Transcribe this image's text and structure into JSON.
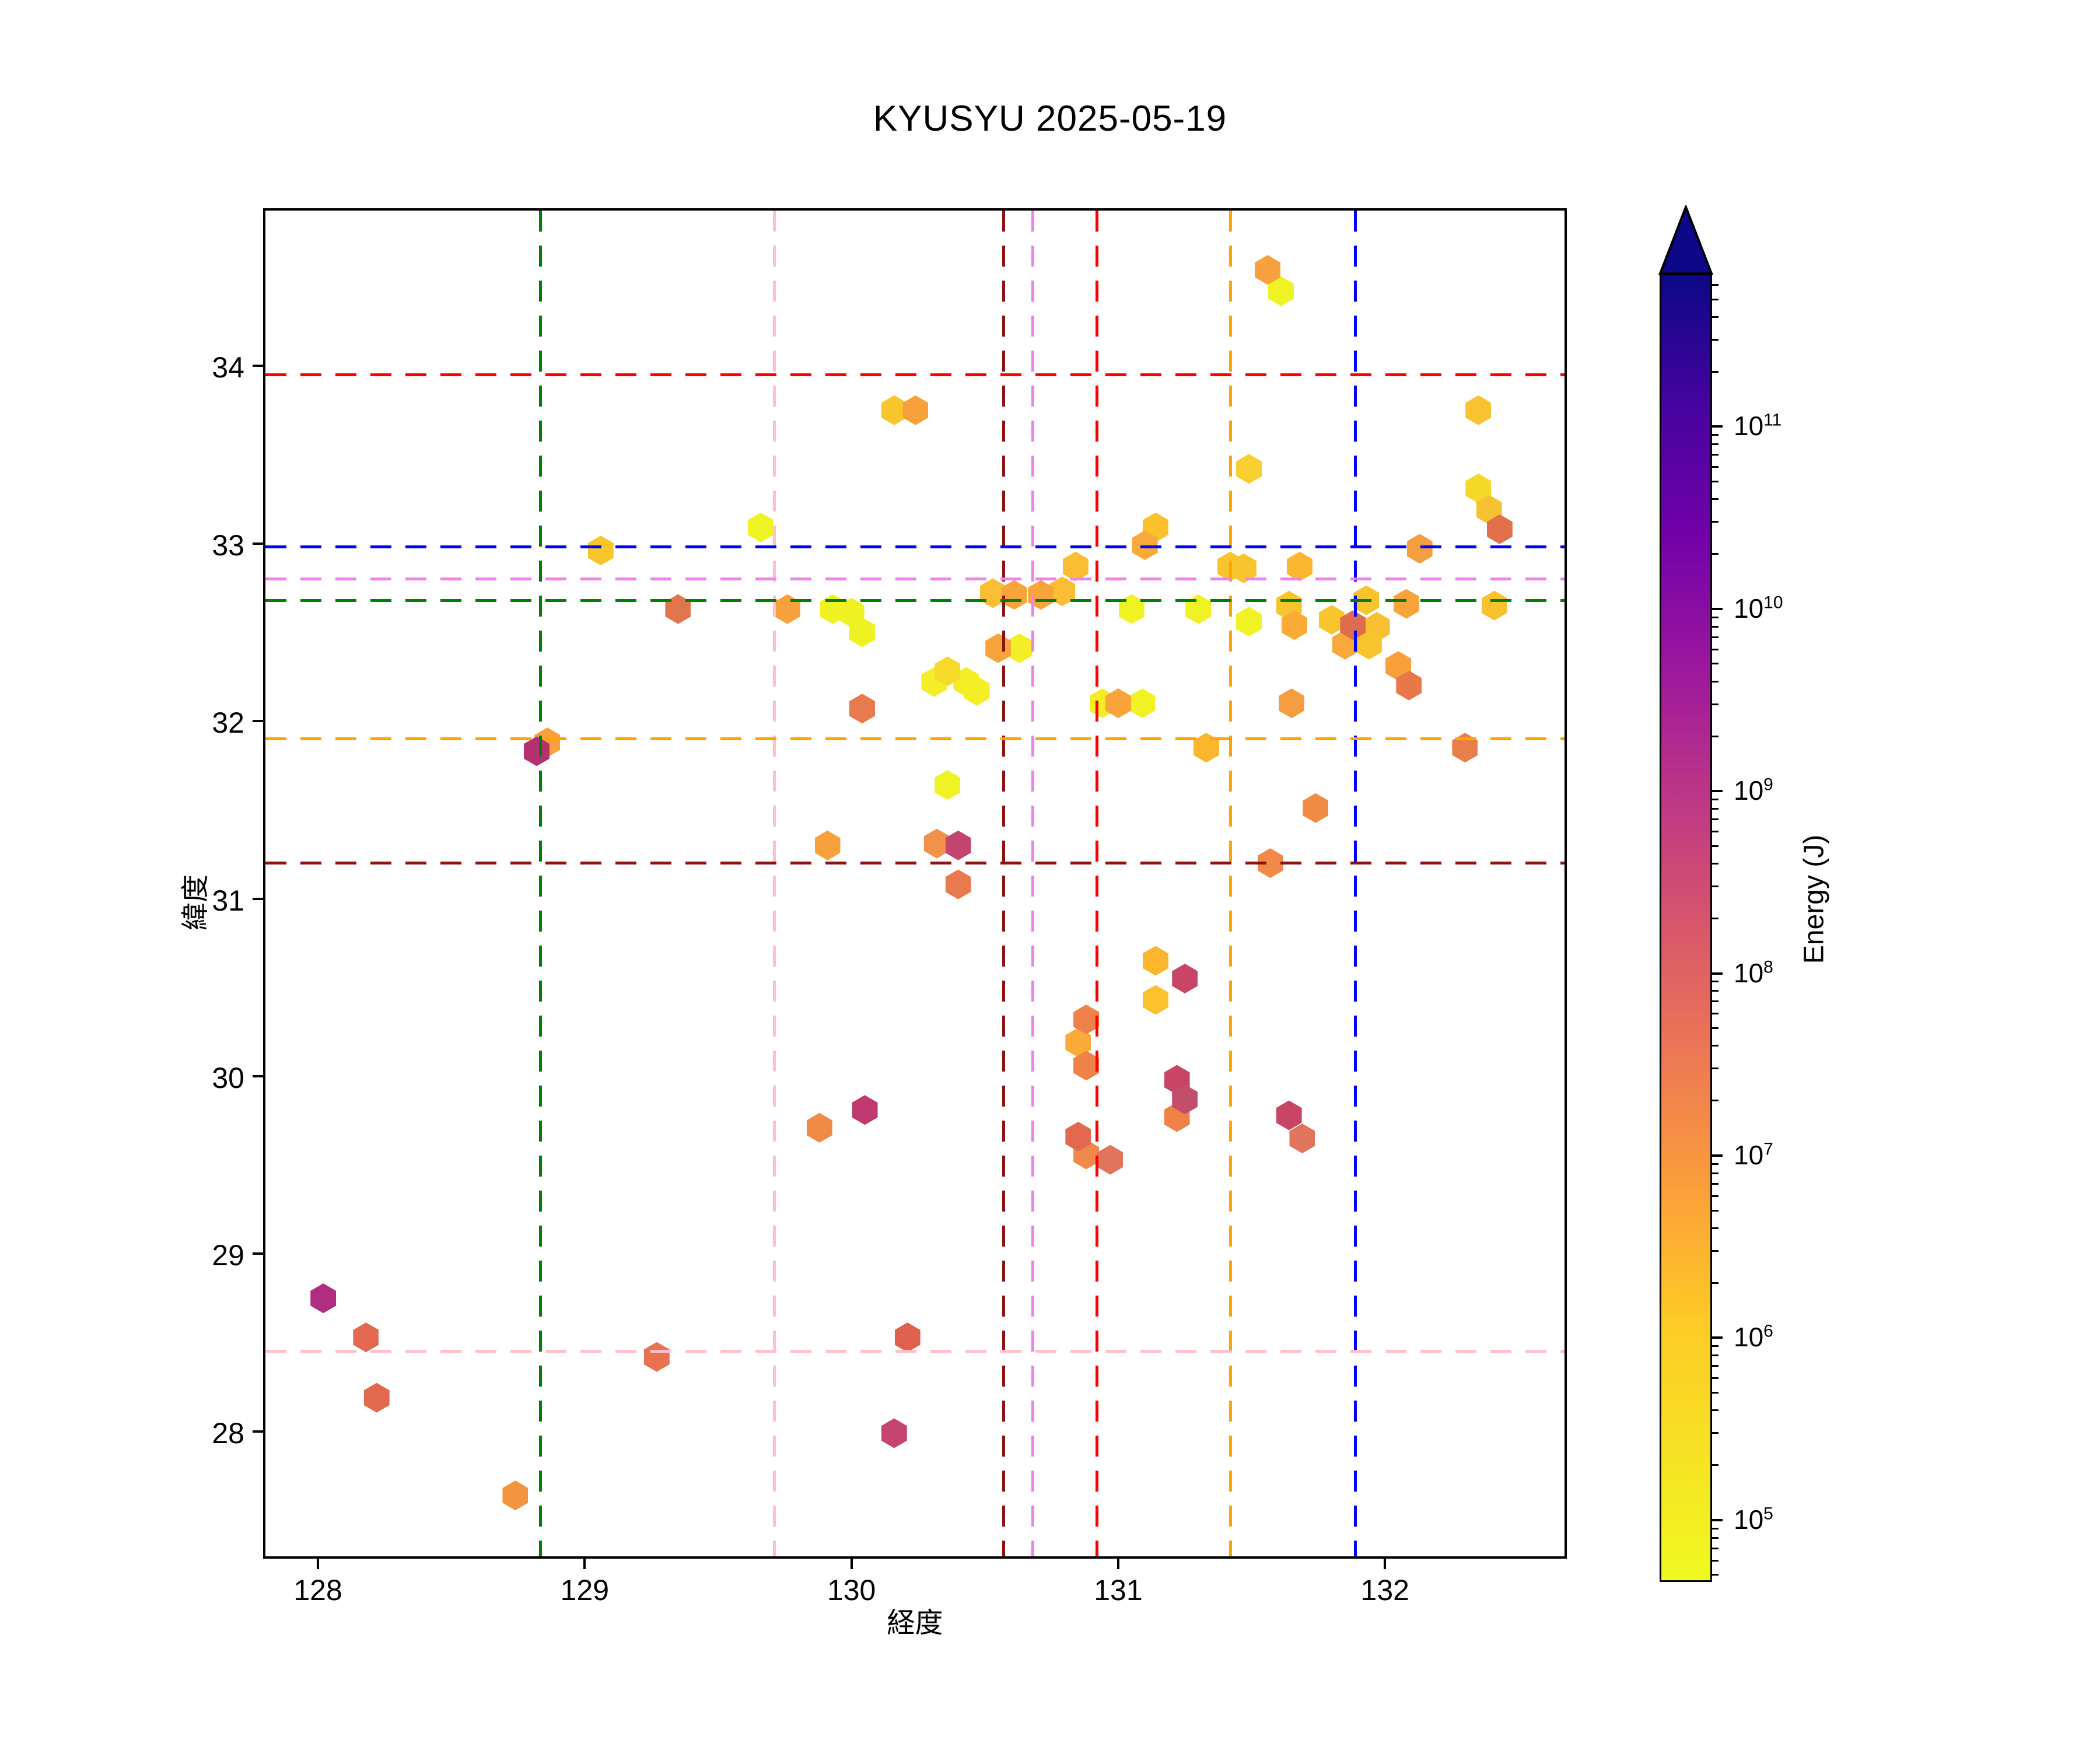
{
  "title": "KYUSYU 2025-05-19",
  "chart_data": {
    "type": "scatter",
    "title": "KYUSYU 2025-05-19",
    "xlabel": "経度",
    "ylabel": "緯度",
    "marker_shape": "hexagon",
    "grid": false,
    "xlim": [
      127.803,
      132.673
    ],
    "ylim": [
      27.297,
      34.874
    ],
    "x_ticks": [
      128,
      129,
      130,
      131,
      132
    ],
    "y_ticks": [
      28,
      29,
      30,
      31,
      32,
      33,
      34
    ],
    "colorbar": {
      "label": "Energy (J)",
      "scale": "log",
      "tick_exponents": [
        5,
        6,
        7,
        8,
        9,
        10,
        11
      ],
      "exp_min": 4.66,
      "exp_max": 11.84,
      "colormap": "plasma_r (yellow=low, navy=high)",
      "arrow": "top"
    },
    "vlines": [
      {
        "x": 128.835,
        "color": "#008000"
      },
      {
        "x": 129.71,
        "color": "#ffc0cb"
      },
      {
        "x": 130.57,
        "color": "#8e1212"
      },
      {
        "x": 130.68,
        "color": "#ee82ee"
      },
      {
        "x": 130.92,
        "color": "#ff0000"
      },
      {
        "x": 131.42,
        "color": "#ffa500"
      },
      {
        "x": 131.89,
        "color": "#0000ff"
      }
    ],
    "hlines": [
      {
        "y": 33.95,
        "color": "#ff0000"
      },
      {
        "y": 32.98,
        "color": "#0000ff"
      },
      {
        "y": 32.8,
        "color": "#ee82ee"
      },
      {
        "y": 32.68,
        "color": "#008000"
      },
      {
        "y": 31.9,
        "color": "#ffa500"
      },
      {
        "y": 31.2,
        "color": "#8e1212"
      },
      {
        "y": 28.45,
        "color": "#ffc0cb"
      }
    ],
    "points": [
      {
        "lon": 131.61,
        "lat": 34.42,
        "color": "#eff223"
      },
      {
        "lon": 129.66,
        "lat": 33.09,
        "color": "#eff223"
      },
      {
        "lon": 129.93,
        "lat": 32.63,
        "color": "#eef222"
      },
      {
        "lon": 130.0,
        "lat": 32.61,
        "color": "#eef222"
      },
      {
        "lon": 130.04,
        "lat": 32.5,
        "color": "#eef222"
      },
      {
        "lon": 131.05,
        "lat": 32.63,
        "color": "#eff223"
      },
      {
        "lon": 131.3,
        "lat": 32.63,
        "color": "#eff223"
      },
      {
        "lon": 130.63,
        "lat": 32.41,
        "color": "#f3ee26"
      },
      {
        "lon": 131.49,
        "lat": 32.56,
        "color": "#f0f224"
      },
      {
        "lon": 130.94,
        "lat": 32.1,
        "color": "#f2ee25"
      },
      {
        "lon": 131.09,
        "lat": 32.1,
        "color": "#f0f224"
      },
      {
        "lon": 130.31,
        "lat": 32.22,
        "color": "#f3ee26"
      },
      {
        "lon": 130.43,
        "lat": 32.22,
        "color": "#f3ee26"
      },
      {
        "lon": 130.47,
        "lat": 32.17,
        "color": "#f3ee26"
      },
      {
        "lon": 130.36,
        "lat": 32.28,
        "color": "#f6d929"
      },
      {
        "lon": 130.36,
        "lat": 31.64,
        "color": "#eff223"
      },
      {
        "lon": 132.35,
        "lat": 33.31,
        "color": "#f5d929"
      },
      {
        "lon": 130.16,
        "lat": 33.75,
        "color": "#f8c52c"
      },
      {
        "lon": 132.35,
        "lat": 33.75,
        "color": "#f8c230"
      },
      {
        "lon": 131.14,
        "lat": 33.09,
        "color": "#fbc02b"
      },
      {
        "lon": 131.49,
        "lat": 33.42,
        "color": "#f8ce30"
      },
      {
        "lon": 129.06,
        "lat": 32.96,
        "color": "#f8c52c"
      },
      {
        "lon": 130.53,
        "lat": 32.72,
        "color": "#fbbd33"
      },
      {
        "lon": 130.79,
        "lat": 32.73,
        "color": "#fbbd33"
      },
      {
        "lon": 130.84,
        "lat": 32.87,
        "color": "#fbbd33"
      },
      {
        "lon": 131.42,
        "lat": 32.87,
        "color": "#f8c42d"
      },
      {
        "lon": 131.47,
        "lat": 32.86,
        "color": "#f8c42d"
      },
      {
        "lon": 131.68,
        "lat": 32.87,
        "color": "#fbb731"
      },
      {
        "lon": 131.64,
        "lat": 32.65,
        "color": "#f8c42d"
      },
      {
        "lon": 131.93,
        "lat": 32.68,
        "color": "#f8c42d"
      },
      {
        "lon": 132.41,
        "lat": 32.65,
        "color": "#f8c22e"
      },
      {
        "lon": 131.8,
        "lat": 32.57,
        "color": "#f8c52c"
      },
      {
        "lon": 131.97,
        "lat": 32.53,
        "color": "#f8c030"
      },
      {
        "lon": 131.94,
        "lat": 32.43,
        "color": "#f8c42d"
      },
      {
        "lon": 131.33,
        "lat": 31.85,
        "color": "#fbb62e"
      },
      {
        "lon": 131.14,
        "lat": 30.65,
        "color": "#fbb62e"
      },
      {
        "lon": 131.14,
        "lat": 30.43,
        "color": "#fbc22d"
      },
      {
        "lon": 132.39,
        "lat": 33.19,
        "color": "#f7c232"
      },
      {
        "lon": 131.66,
        "lat": 32.54,
        "color": "#f9ab36"
      },
      {
        "lon": 130.85,
        "lat": 30.19,
        "color": "#f9aa38"
      },
      {
        "lon": 131.56,
        "lat": 34.54,
        "color": "#f7a13c"
      },
      {
        "lon": 130.24,
        "lat": 33.75,
        "color": "#f7a13c"
      },
      {
        "lon": 131.1,
        "lat": 32.99,
        "color": "#f9a83a"
      },
      {
        "lon": 129.76,
        "lat": 32.63,
        "color": "#f7a13c"
      },
      {
        "lon": 130.61,
        "lat": 32.71,
        "color": "#f9a43a"
      },
      {
        "lon": 130.71,
        "lat": 32.71,
        "color": "#f9a43a"
      },
      {
        "lon": 130.55,
        "lat": 32.41,
        "color": "#f9a43a"
      },
      {
        "lon": 131.0,
        "lat": 32.1,
        "color": "#f8a43b"
      },
      {
        "lon": 132.13,
        "lat": 32.97,
        "color": "#f49d41"
      },
      {
        "lon": 132.08,
        "lat": 32.66,
        "color": "#f8a43b"
      },
      {
        "lon": 131.85,
        "lat": 32.43,
        "color": "#f9a83a"
      },
      {
        "lon": 132.05,
        "lat": 32.31,
        "color": "#f9a03c"
      },
      {
        "lon": 131.65,
        "lat": 32.1,
        "color": "#f49d41"
      },
      {
        "lon": 128.86,
        "lat": 31.88,
        "color": "#f7a13c"
      },
      {
        "lon": 129.91,
        "lat": 31.3,
        "color": "#f7a13c"
      },
      {
        "lon": 128.74,
        "lat": 27.64,
        "color": "#f3953f"
      },
      {
        "lon": 130.32,
        "lat": 31.31,
        "color": "#f2914a"
      },
      {
        "lon": 131.74,
        "lat": 31.51,
        "color": "#f08a45"
      },
      {
        "lon": 131.57,
        "lat": 31.2,
        "color": "#f0894a"
      },
      {
        "lon": 130.88,
        "lat": 29.56,
        "color": "#f0894a"
      },
      {
        "lon": 129.88,
        "lat": 29.71,
        "color": "#f08a45"
      },
      {
        "lon": 131.22,
        "lat": 29.77,
        "color": "#ef8246"
      },
      {
        "lon": 132.43,
        "lat": 33.08,
        "color": "#e2704a"
      },
      {
        "lon": 129.35,
        "lat": 32.63,
        "color": "#e2754e"
      },
      {
        "lon": 130.04,
        "lat": 32.07,
        "color": "#e87a4d"
      },
      {
        "lon": 132.09,
        "lat": 32.2,
        "color": "#e8784a"
      },
      {
        "lon": 131.88,
        "lat": 32.54,
        "color": "#dd6d4d"
      },
      {
        "lon": 130.4,
        "lat": 31.08,
        "color": "#e87a4d"
      },
      {
        "lon": 132.3,
        "lat": 31.85,
        "color": "#e87f4b"
      },
      {
        "lon": 130.88,
        "lat": 30.32,
        "color": "#ee8248"
      },
      {
        "lon": 130.88,
        "lat": 30.06,
        "color": "#ee8248"
      },
      {
        "lon": 130.85,
        "lat": 29.66,
        "color": "#e2694f"
      },
      {
        "lon": 130.97,
        "lat": 29.53,
        "color": "#e0745c"
      },
      {
        "lon": 131.69,
        "lat": 29.65,
        "color": "#e0745c"
      },
      {
        "lon": 128.18,
        "lat": 28.53,
        "color": "#e2694f"
      },
      {
        "lon": 128.22,
        "lat": 28.19,
        "color": "#e0694f"
      },
      {
        "lon": 129.27,
        "lat": 28.42,
        "color": "#e87150"
      },
      {
        "lon": 130.21,
        "lat": 28.53,
        "color": "#e0614e"
      },
      {
        "lon": 131.25,
        "lat": 30.55,
        "color": "#c84566"
      },
      {
        "lon": 131.22,
        "lat": 29.98,
        "color": "#c84566"
      },
      {
        "lon": 131.25,
        "lat": 29.87,
        "color": "#c34e6b"
      },
      {
        "lon": 131.64,
        "lat": 29.78,
        "color": "#c84566"
      },
      {
        "lon": 130.4,
        "lat": 31.3,
        "color": "#c2456f"
      },
      {
        "lon": 130.05,
        "lat": 29.81,
        "color": "#c0396f"
      },
      {
        "lon": 130.16,
        "lat": 27.99,
        "color": "#c6456e"
      },
      {
        "lon": 128.82,
        "lat": 31.83,
        "color": "#b5306e"
      },
      {
        "lon": 128.02,
        "lat": 28.75,
        "color": "#b12d80"
      }
    ]
  }
}
